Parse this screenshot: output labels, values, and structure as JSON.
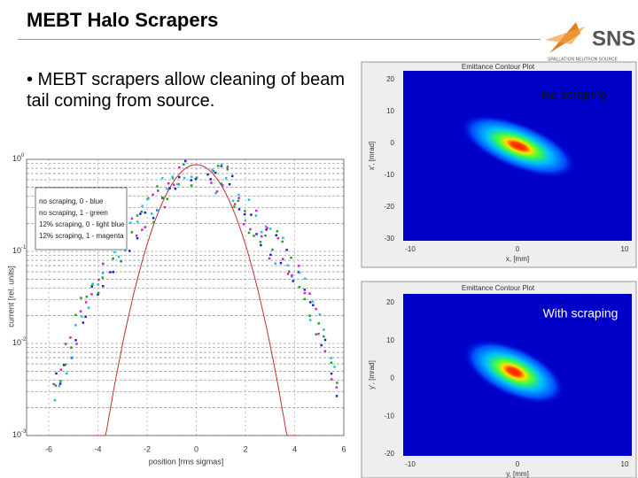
{
  "header": {
    "title": "MEBT Halo Scrapers"
  },
  "logo": {
    "text": "SNS",
    "subtitle": "SPALLATION NEUTRON SOURCE"
  },
  "bullets": [
    "• MEBT scrapers allow cleaning of beam tail coming from source."
  ],
  "left_plot": {
    "legend": [
      "no scraping,   0 - blue",
      "no scraping,   1 - green",
      "12% scraping, 0 - light blue",
      "12% scraping, 1 - magenta"
    ],
    "xlabel": "position [rms sigmas]",
    "ylabel": "current [rel. units]",
    "xticks": [
      "-6",
      "-4",
      "-2",
      "0",
      "2",
      "4",
      "6"
    ],
    "yticks": [
      {
        "base": "10",
        "exp": "0"
      },
      {
        "base": "10",
        "exp": "-1"
      },
      {
        "base": "10",
        "exp": "-2"
      },
      {
        "base": "10",
        "exp": "-3"
      }
    ]
  },
  "top_plot": {
    "title": "Emittance Contour Plot",
    "label": "No scraping",
    "xlabel": "x, [mm]",
    "ylabel": "x', [mrad]",
    "xticks": [
      "-10",
      "0",
      "10"
    ],
    "yticks": [
      "20",
      "10",
      "0",
      "-10",
      "-20",
      "-30"
    ]
  },
  "bottom_plot": {
    "title": "Emittance Contour Plot",
    "label": "With scraping",
    "xlabel": "y, [mm]",
    "ylabel": "y', [mrad]",
    "xticks": [
      "-10",
      "0",
      "10"
    ],
    "yticks": [
      "20",
      "10",
      "0",
      "-10",
      "-20"
    ]
  }
}
